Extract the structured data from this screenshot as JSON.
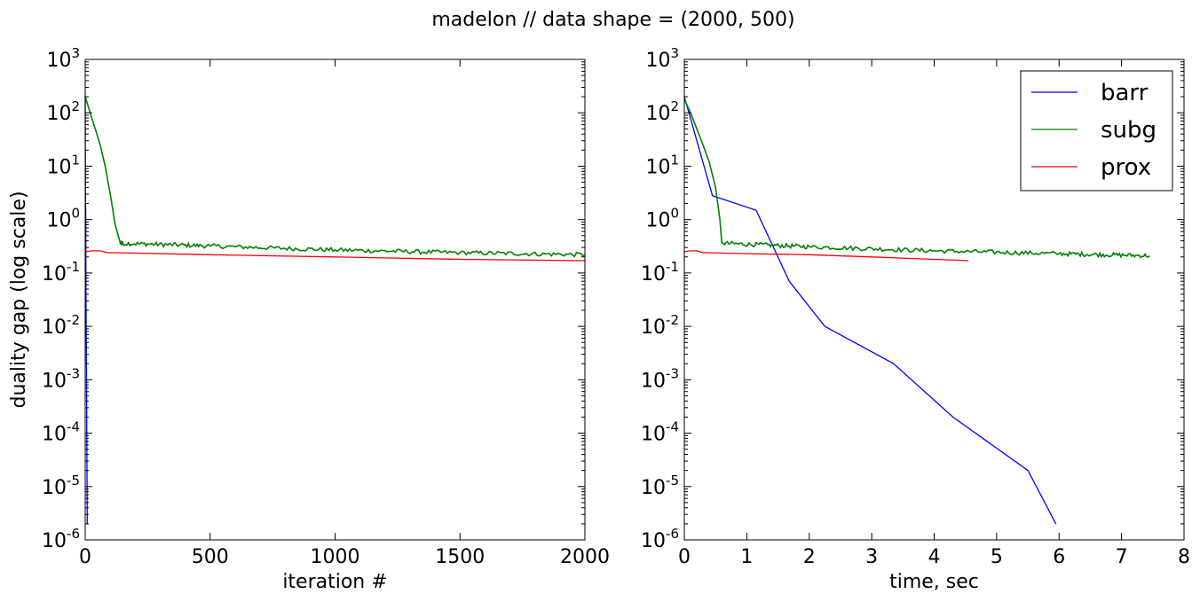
{
  "figure_title": "madelon // data shape = (2000, 500)",
  "colors": {
    "barr": "#0000ff",
    "subg": "#008000",
    "prox": "#ff0000"
  },
  "chart_data": [
    {
      "type": "line",
      "title": "",
      "xlabel": "iteration #",
      "ylabel": "duality gap (log scale)",
      "xlim": [
        0,
        2000
      ],
      "ylim": [
        1e-06,
        1000
      ],
      "yscale": "log",
      "xticks": [
        0,
        500,
        1000,
        1500,
        2000
      ],
      "yticks_exp": [
        -6,
        -5,
        -4,
        -3,
        -2,
        -1,
        0,
        1,
        2,
        3
      ],
      "grid": false,
      "legend": null,
      "series": [
        {
          "name": "barr",
          "color": "#0000ff",
          "x": [
            0,
            1,
            2,
            3,
            4,
            5,
            6,
            7,
            8
          ],
          "y": [
            200,
            2.5,
            1.5,
            0.07,
            0.01,
            0.002,
            0.0002,
            2e-05,
            2e-06
          ]
        },
        {
          "name": "subg",
          "color": "#008000",
          "noisy_from": 140,
          "noise": 0.08,
          "x": [
            0,
            20,
            40,
            60,
            80,
            100,
            120,
            140,
            150,
            500,
            1000,
            1500,
            2000
          ],
          "y": [
            200,
            100,
            50,
            25,
            10,
            3,
            0.8,
            0.37,
            0.36,
            0.32,
            0.27,
            0.24,
            0.22
          ]
        },
        {
          "name": "prox",
          "color": "#ff0000",
          "x": [
            0,
            30,
            60,
            90,
            120,
            500,
            1000,
            1500,
            2000
          ],
          "y": [
            0.25,
            0.26,
            0.26,
            0.24,
            0.24,
            0.22,
            0.2,
            0.18,
            0.17
          ]
        }
      ]
    },
    {
      "type": "line",
      "title": "",
      "xlabel": "time, sec",
      "ylabel": "",
      "xlim": [
        0,
        8
      ],
      "ylim": [
        1e-06,
        1000
      ],
      "yscale": "log",
      "xticks": [
        0,
        1,
        2,
        3,
        4,
        5,
        6,
        7,
        8
      ],
      "yticks_exp": [
        -6,
        -5,
        -4,
        -3,
        -2,
        -1,
        0,
        1,
        2,
        3
      ],
      "grid": false,
      "legend": "top-right",
      "series": [
        {
          "name": "barr",
          "color": "#0000ff",
          "x": [
            0,
            0.45,
            1.15,
            1.68,
            2.25,
            3.35,
            4.3,
            5.5,
            5.95
          ],
          "y": [
            200,
            2.8,
            1.5,
            0.07,
            0.01,
            0.002,
            0.0002,
            2e-05,
            2e-06
          ]
        },
        {
          "name": "subg",
          "color": "#008000",
          "noisy_from": 0.62,
          "noise": 0.08,
          "x": [
            0,
            0.1,
            0.2,
            0.3,
            0.4,
            0.5,
            0.57,
            0.6,
            0.62,
            2,
            4,
            6,
            7.45
          ],
          "y": [
            180,
            100,
            50,
            25,
            12,
            4,
            1,
            0.37,
            0.36,
            0.31,
            0.26,
            0.23,
            0.21
          ]
        },
        {
          "name": "prox",
          "color": "#ff0000",
          "x": [
            0,
            0.1,
            0.2,
            0.3,
            0.35,
            1,
            2,
            3,
            4,
            4.55
          ],
          "y": [
            0.25,
            0.26,
            0.26,
            0.24,
            0.24,
            0.23,
            0.22,
            0.2,
            0.18,
            0.17
          ]
        }
      ]
    }
  ]
}
